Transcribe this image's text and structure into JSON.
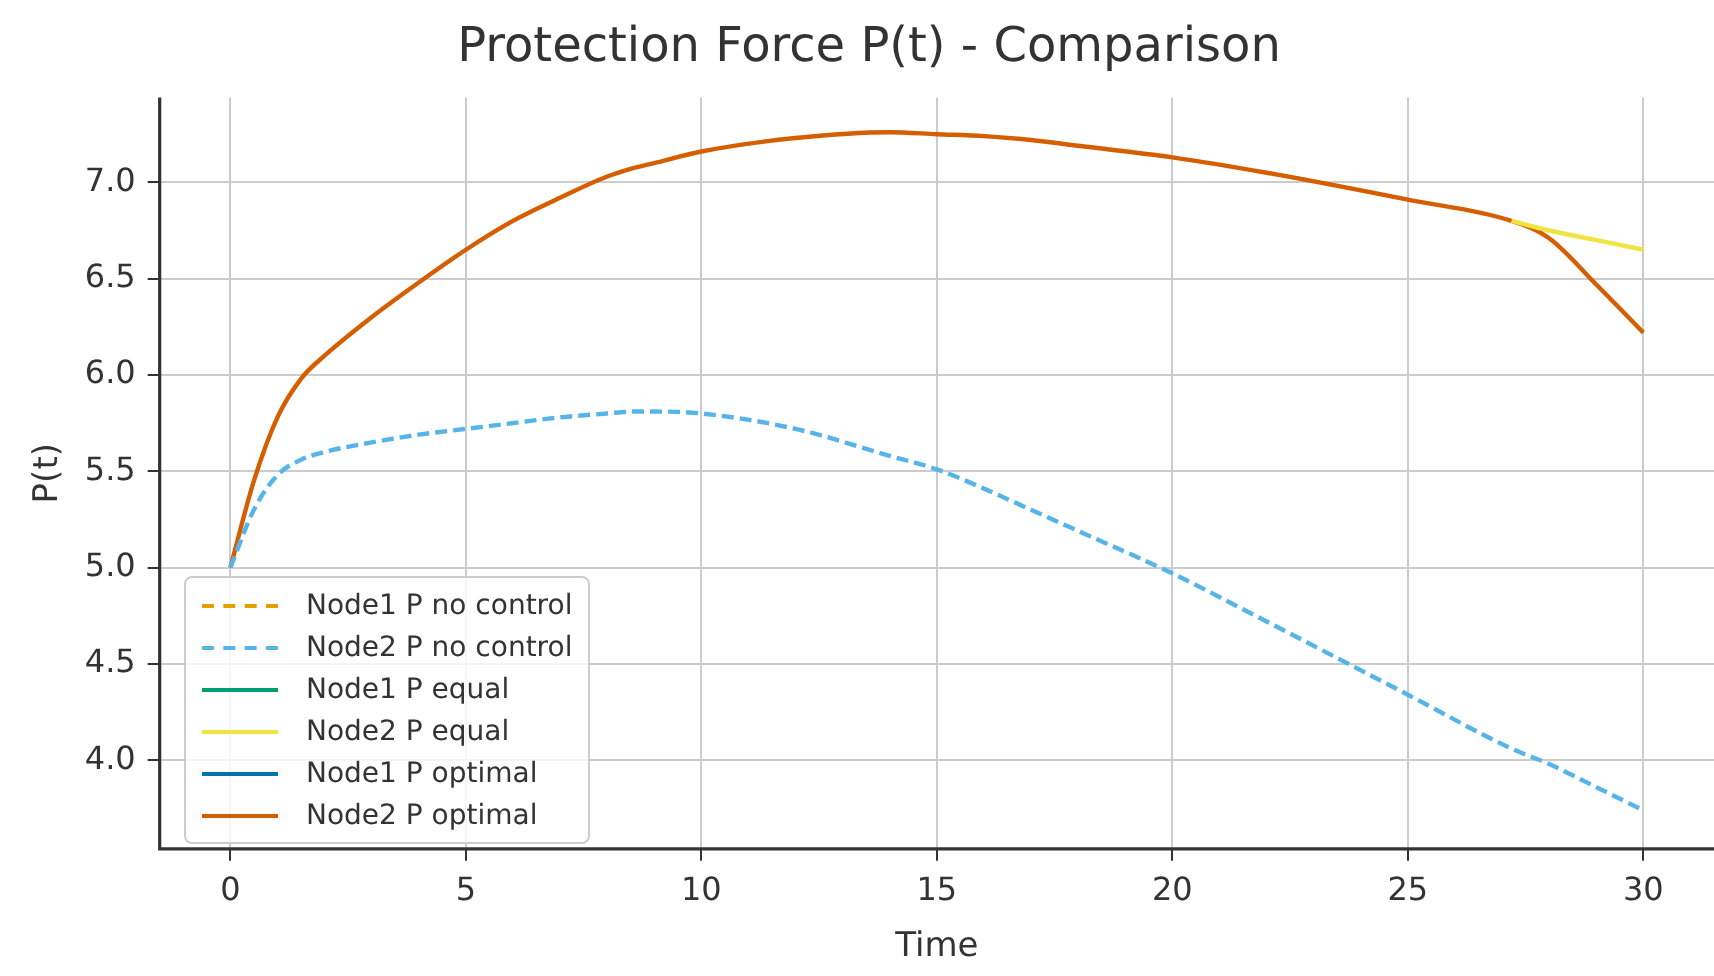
{
  "chart_data": {
    "type": "line",
    "title": "Protection Force P(t) - Comparison",
    "xlabel": "Time",
    "ylabel": "P(t)",
    "x": [
      0,
      0.5,
      1,
      1.5,
      2,
      3,
      4,
      5,
      6,
      7,
      8,
      8.5,
      9,
      10,
      12,
      14,
      15,
      16,
      17,
      18,
      20,
      22,
      25,
      27.2,
      28,
      29,
      30
    ],
    "xlim": [
      -1.5,
      31.5
    ],
    "xticks": [
      0,
      5,
      10,
      15,
      20,
      25,
      30
    ],
    "ylim": [
      3.54,
      7.44
    ],
    "yticks": [
      {
        "value": 4,
        "label": "4.0"
      },
      4.5,
      {
        "value": 5,
        "label": "5.0"
      },
      5.5,
      {
        "value": 6,
        "label": "6.0"
      },
      6.5,
      {
        "value": 7,
        "label": "7.0"
      }
    ],
    "grid": true,
    "legend": "bottom left",
    "marker": "none",
    "series": [
      {
        "name": "Node1 P no control",
        "color": "#e69f00",
        "line_style": "dashed",
        "values": [
          null,
          null,
          null,
          null,
          null,
          null,
          null,
          null,
          null,
          null,
          null,
          null,
          null,
          null,
          null,
          null,
          null,
          null,
          null,
          null,
          null,
          null,
          null,
          null,
          null,
          null,
          null
        ]
      },
      {
        "name": "Node2 P no control",
        "color": "#56b4e9",
        "line_style": "dashed",
        "values": [
          5.0,
          5.3,
          5.48,
          5.56,
          5.6,
          5.65,
          5.69,
          5.72,
          5.75,
          5.78,
          5.8,
          5.81,
          5.81,
          5.8,
          5.72,
          5.58,
          5.51,
          5.41,
          5.3,
          5.19,
          4.97,
          4.72,
          4.34,
          4.06,
          3.98,
          3.86,
          3.74
        ]
      },
      {
        "name": "Node1 P equal",
        "color": "#009e73",
        "line_style": "solid",
        "values": [
          null,
          null,
          null,
          null,
          null,
          null,
          null,
          null,
          null,
          null,
          null,
          null,
          null,
          null,
          null,
          null,
          null,
          null,
          null,
          null,
          null,
          null,
          null,
          null,
          null,
          null,
          null
        ]
      },
      {
        "name": "Node2 P equal",
        "color": "#f0e442",
        "line_style": "solid",
        "values": [
          null,
          null,
          null,
          null,
          null,
          null,
          null,
          null,
          null,
          null,
          null,
          null,
          null,
          null,
          null,
          null,
          null,
          null,
          null,
          null,
          null,
          null,
          null,
          6.8,
          6.75,
          6.7,
          6.65
        ]
      },
      {
        "name": "Node1 P optimal",
        "color": "#0072b2",
        "line_style": "solid",
        "values": [
          null,
          null,
          null,
          null,
          null,
          null,
          null,
          null,
          null,
          null,
          null,
          null,
          null,
          null,
          null,
          null,
          null,
          null,
          null,
          null,
          null,
          null,
          null,
          null,
          null,
          null,
          null
        ]
      },
      {
        "name": "Node2 P optimal",
        "color": "#d55e00",
        "line_style": "solid",
        "values": [
          5.0,
          5.45,
          5.78,
          5.98,
          6.1,
          6.3,
          6.48,
          6.65,
          6.8,
          6.92,
          7.03,
          7.07,
          7.1,
          7.16,
          7.23,
          7.26,
          7.25,
          7.24,
          7.22,
          7.19,
          7.13,
          7.05,
          6.91,
          6.8,
          6.71,
          6.47,
          6.22
        ]
      }
    ]
  }
}
